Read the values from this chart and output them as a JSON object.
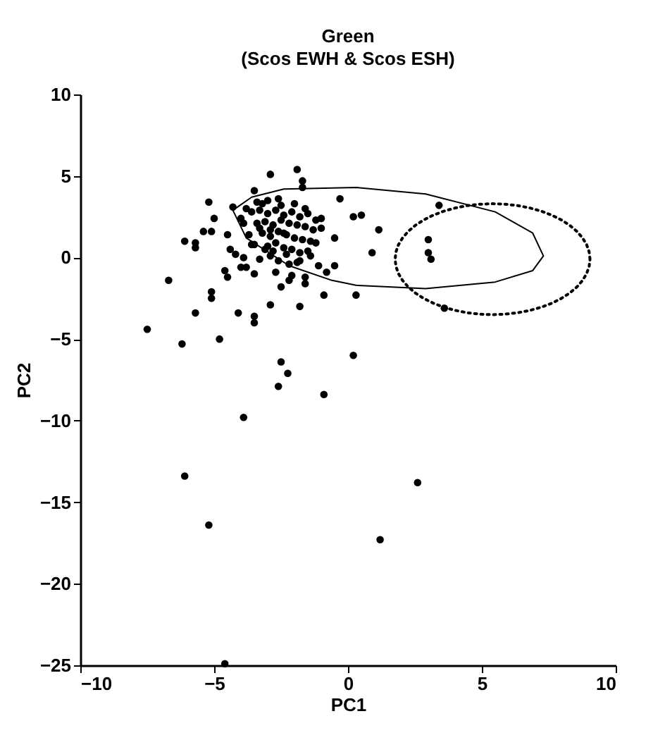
{
  "chart_data": {
    "type": "scatter",
    "title": "Green",
    "subtitle": "(Scos EWH & Scos ESH)",
    "xlabel": "PC1",
    "ylabel": "PC2",
    "xlim": [
      -10,
      10
    ],
    "xticks": [
      -10,
      -5,
      0,
      5,
      10
    ],
    "ylim": [
      -25,
      10
    ],
    "yticks": [
      -25,
      -20,
      -15,
      -10,
      -5,
      0,
      5,
      10
    ],
    "grid": false,
    "marker": "circle",
    "series": [
      {
        "color": "#000000",
        "x": [
          -6.2,
          -4.8,
          -2.5,
          -2.25,
          -2.6,
          -0.9,
          0.2,
          -3.9,
          -6.1,
          -5.2,
          2.6,
          1.2,
          -4.6,
          -7.5,
          -6.7,
          -5.7,
          -5.1,
          -5.1,
          -4.1,
          -3.5,
          -3.5,
          -2.9,
          -1.8,
          -0.9,
          0.3,
          -5.2,
          -6.1,
          -5.7,
          -5.7,
          -1.9,
          -2.9,
          -1.7,
          -1.7,
          -3.5,
          -3.2,
          -0.3,
          0.2,
          0.5,
          -4.6,
          -4.5,
          -3.8,
          -5.0,
          -5.1,
          -5.4,
          -4.5,
          -4.0,
          -0.5,
          -0.8,
          -1.6,
          -2.2,
          -2.5,
          -1.6,
          -1.1,
          -0.5,
          -1.0,
          -1.0,
          1.15,
          0.9,
          3.4,
          3.0,
          3.0,
          3.1,
          3.6,
          -3.6,
          -3.3,
          -3.0,
          -2.7,
          -2.4,
          -2.1,
          -1.8,
          -1.5,
          -1.2,
          -3.4,
          -3.1,
          -2.8,
          -2.5,
          -2.2,
          -1.9,
          -1.6,
          -1.3,
          -3.7,
          -3.2,
          -2.9,
          -2.6,
          -2.3,
          -2.0,
          -1.7,
          -1.4,
          -3.5,
          -3.0,
          -2.7,
          -2.4,
          -2.1,
          -1.8,
          -1.5,
          -4.2,
          -3.9,
          -3.3,
          -2.9,
          -2.6,
          -2.2,
          -1.9,
          -1.4,
          -4.3,
          -3.8,
          -3.4,
          -3.0,
          -2.5,
          -2.0,
          -1.6,
          -3.6,
          -3.1,
          -2.8,
          -2.3,
          -1.8,
          -4.0,
          -3.5,
          -2.7,
          -2.1,
          -3.3,
          -2.9,
          -2.4,
          -1.2,
          -4.4,
          -3.9,
          -2.6
        ],
        "values": [
          -5.3,
          -5.0,
          -6.4,
          -7.1,
          -7.9,
          -8.4,
          -6.0,
          -9.8,
          -13.4,
          -16.4,
          -13.8,
          -17.3,
          -24.9,
          -4.4,
          -1.4,
          -3.4,
          -2.5,
          -2.1,
          -3.4,
          -3.6,
          -4.0,
          -2.9,
          -3.0,
          -2.3,
          -2.3,
          3.4,
          1.0,
          0.9,
          0.6,
          5.4,
          5.1,
          4.7,
          4.3,
          4.1,
          3.3,
          3.6,
          2.5,
          2.6,
          -0.8,
          -1.2,
          -0.6,
          2.4,
          1.6,
          1.6,
          1.4,
          2.4,
          -0.5,
          -0.9,
          -1.2,
          -1.4,
          -1.8,
          -1.6,
          -0.5,
          1.2,
          2.4,
          1.8,
          1.7,
          0.3,
          3.2,
          1.1,
          0.3,
          -0.1,
          -3.1,
          2.8,
          2.9,
          2.7,
          2.9,
          2.6,
          2.8,
          2.5,
          2.7,
          2.3,
          2.1,
          2.2,
          2.0,
          2.3,
          2.1,
          2.0,
          1.9,
          1.7,
          1.4,
          1.5,
          1.3,
          1.6,
          1.4,
          1.2,
          1.1,
          1.0,
          0.8,
          0.7,
          0.9,
          0.6,
          0.5,
          0.3,
          0.4,
          0.2,
          0.0,
          -0.1,
          0.1,
          -0.2,
          -0.4,
          -0.3,
          0.1,
          3.1,
          3.0,
          3.4,
          3.5,
          3.2,
          3.3,
          3.0,
          0.8,
          0.5,
          0.4,
          0.2,
          -0.2,
          -0.6,
          -1.0,
          -0.9,
          -1.1,
          1.8,
          1.7,
          1.5,
          0.9,
          0.5,
          2.1,
          3.6
        ]
      }
    ]
  }
}
